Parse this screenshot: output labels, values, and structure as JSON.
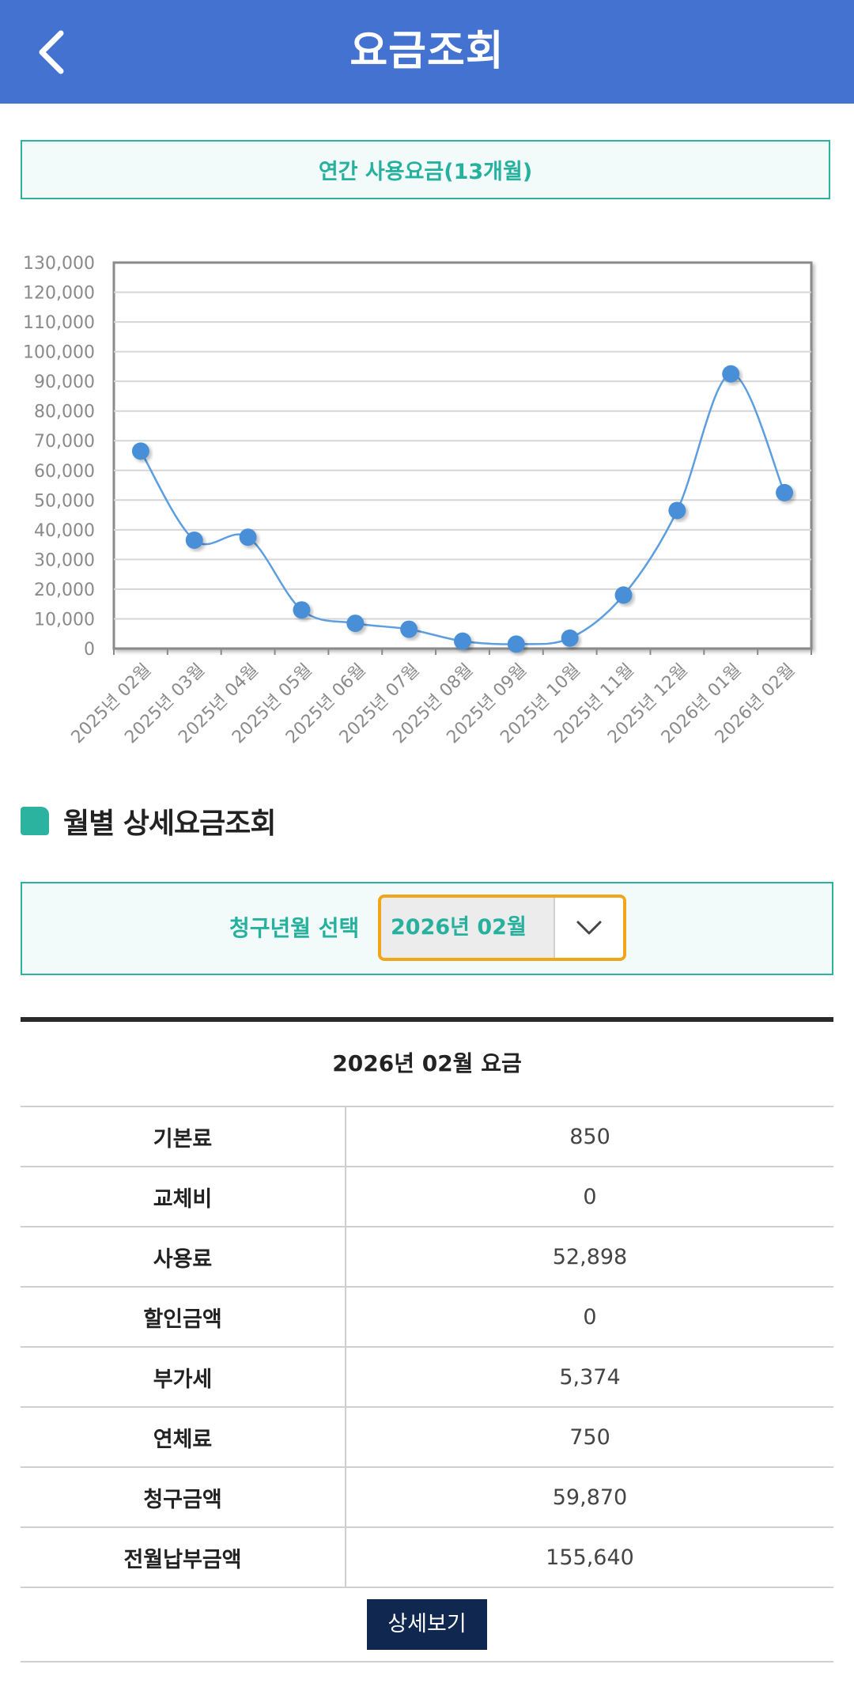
{
  "header": {
    "title": "요금조회",
    "back_icon": "chevron-left-icon",
    "background_color": "#4472d0"
  },
  "annual": {
    "label": "연간 사용요금(13개월)",
    "accent_color": "#2bb3a0"
  },
  "chart_data": {
    "type": "line",
    "title": "",
    "xlabel": "",
    "ylabel": "",
    "ylim": [
      0,
      130000
    ],
    "y_ticks": [
      "0",
      "10,000",
      "20,000",
      "30,000",
      "40,000",
      "50,000",
      "60,000",
      "70,000",
      "80,000",
      "90,000",
      "100,000",
      "110,000",
      "120,000",
      "130,000"
    ],
    "y_tick_values": [
      0,
      10000,
      20000,
      30000,
      40000,
      50000,
      60000,
      70000,
      80000,
      90000,
      100000,
      110000,
      120000,
      130000
    ],
    "categories": [
      "2025년 02월",
      "2025년 03월",
      "2025년 04월",
      "2025년 05월",
      "2025년 06월",
      "2025년 07월",
      "2025년 08월",
      "2025년 09월",
      "2025년 10월",
      "2025년 11월",
      "2025년 12월",
      "2026년 01월",
      "2026년 02월"
    ],
    "series": [
      {
        "values": [
          66500,
          36500,
          37500,
          13000,
          8500,
          6500,
          2500,
          1500,
          3500,
          18000,
          46500,
          92500,
          52500
        ]
      }
    ],
    "grid": true,
    "smooth": true,
    "line_color": "#5c9ee0",
    "marker_color": "#4a8fd8"
  },
  "section": {
    "title": "월별 상세요금조회"
  },
  "select": {
    "label": "청구년월 선택",
    "value": "2026년 02월",
    "dropdown_icon": "chevron-down-icon",
    "border_color": "#f0a51a"
  },
  "bill": {
    "caption": "2026년 02월 요금",
    "rows": [
      {
        "key": "기본료",
        "value": "850"
      },
      {
        "key": "교체비",
        "value": "0"
      },
      {
        "key": "사용료",
        "value": "52,898"
      },
      {
        "key": "할인금액",
        "value": "0"
      },
      {
        "key": "부가세",
        "value": "5,374"
      },
      {
        "key": "연체료",
        "value": "750"
      },
      {
        "key": "청구금액",
        "value": "59,870"
      },
      {
        "key": "전월납부금액",
        "value": "155,640"
      }
    ],
    "detail_button": "상세보기"
  }
}
